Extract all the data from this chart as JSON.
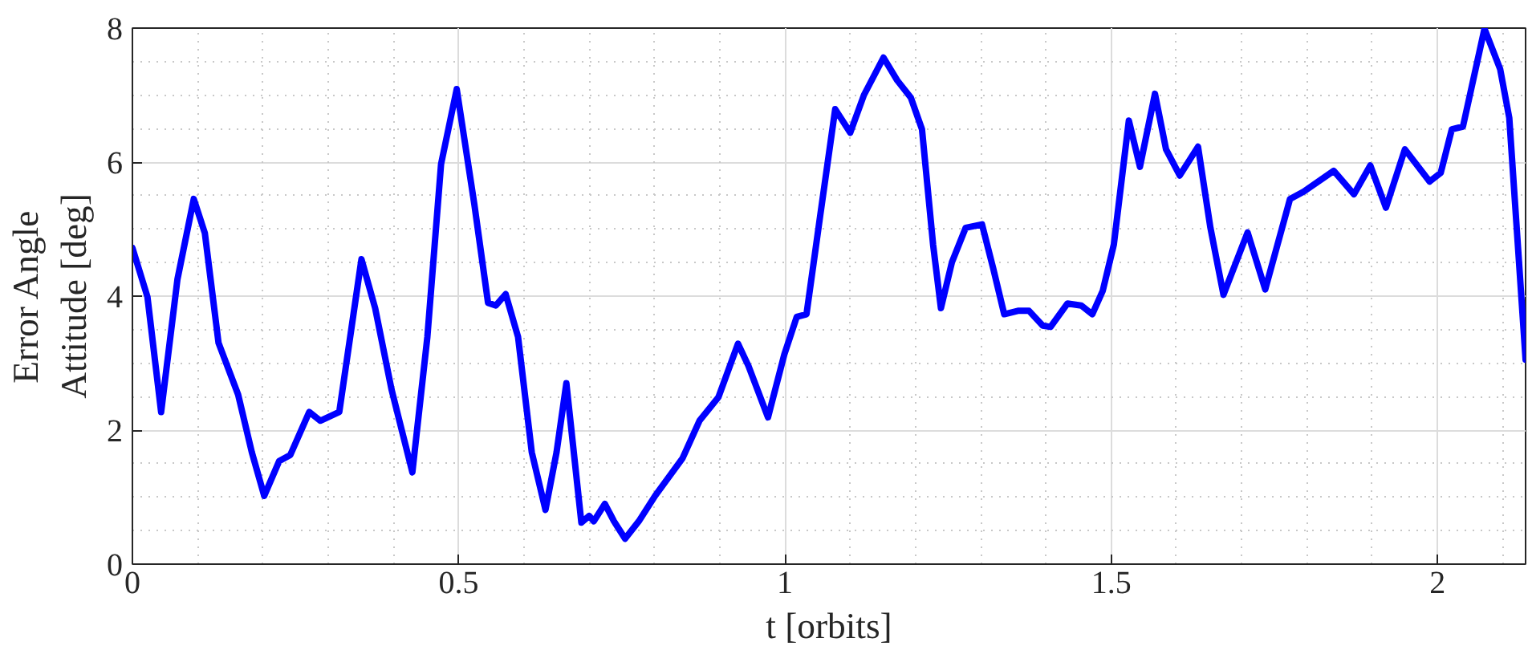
{
  "chart_data": {
    "type": "line",
    "xlabel": "t [orbits]",
    "ylabel": "Error Angle\nAttitude [deg]",
    "x": [
      0,
      0.023,
      0.044,
      0.069,
      0.094,
      0.111,
      0.132,
      0.162,
      0.183,
      0.202,
      0.225,
      0.242,
      0.271,
      0.288,
      0.317,
      0.351,
      0.372,
      0.397,
      0.429,
      0.452,
      0.473,
      0.497,
      0.524,
      0.545,
      0.557,
      0.572,
      0.591,
      0.612,
      0.633,
      0.65,
      0.665,
      0.688,
      0.7,
      0.707,
      0.724,
      0.738,
      0.755,
      0.776,
      0.801,
      0.843,
      0.869,
      0.898,
      0.928,
      0.944,
      0.974,
      0.999,
      1.018,
      1.033,
      1.054,
      1.077,
      1.1,
      1.121,
      1.151,
      1.172,
      1.193,
      1.21,
      1.227,
      1.239,
      1.256,
      1.277,
      1.302,
      1.319,
      1.336,
      1.357,
      1.374,
      1.395,
      1.407,
      1.433,
      1.454,
      1.471,
      1.487,
      1.504,
      1.527,
      1.544,
      1.567,
      1.584,
      1.605,
      1.633,
      1.652,
      1.672,
      1.709,
      1.736,
      1.774,
      1.795,
      1.841,
      1.872,
      1.897,
      1.921,
      1.95,
      1.988,
      2.005,
      2.022,
      2.039,
      2.072,
      2.096,
      2.11,
      2.135
    ],
    "series": [
      {
        "color": "#0000ff",
        "values": [
          4.72,
          3.99,
          2.27,
          4.25,
          5.45,
          4.94,
          3.3,
          2.53,
          1.67,
          1.02,
          1.54,
          1.63,
          2.27,
          2.14,
          2.27,
          4.55,
          3.82,
          2.61,
          1.37,
          3.39,
          5.97,
          7.09,
          5.37,
          3.9,
          3.86,
          4.03,
          3.39,
          1.67,
          0.81,
          1.67,
          2.7,
          0.62,
          0.72,
          0.64,
          0.9,
          0.64,
          0.38,
          0.64,
          1.02,
          1.58,
          2.14,
          2.49,
          3.29,
          2.96,
          2.19,
          3.13,
          3.69,
          3.73,
          5.2,
          6.79,
          6.44,
          7.0,
          7.56,
          7.22,
          6.96,
          6.49,
          4.77,
          3.82,
          4.51,
          5.02,
          5.07,
          4.42,
          3.73,
          3.78,
          3.78,
          3.56,
          3.54,
          3.89,
          3.86,
          3.73,
          4.08,
          4.77,
          6.62,
          5.93,
          7.02,
          6.19,
          5.8,
          6.23,
          5.02,
          4.02,
          4.95,
          4.1,
          5.45,
          5.56,
          5.87,
          5.52,
          5.95,
          5.32,
          6.19,
          5.71,
          5.84,
          6.49,
          6.53,
          7.99,
          7.39,
          6.66,
          3.05
        ]
      }
    ],
    "xlim": [
      0,
      2.135
    ],
    "ylim": [
      0,
      8
    ],
    "xticks": [
      0,
      0.5,
      1,
      1.5,
      2
    ],
    "yticks": [
      0,
      2,
      4,
      6,
      8
    ],
    "grid": true,
    "marker": "none",
    "line_style": "solid"
  }
}
